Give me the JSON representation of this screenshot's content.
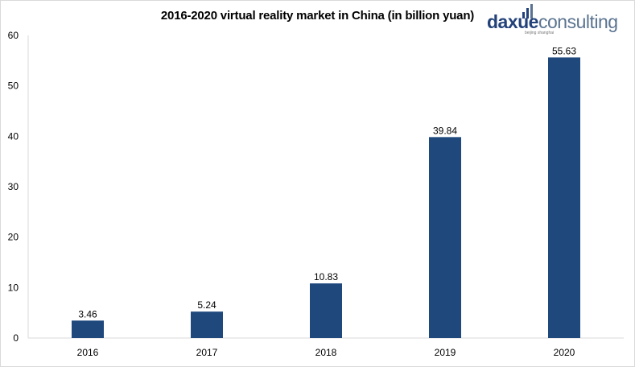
{
  "chart_data": {
    "type": "bar",
    "title": "2016-2020 virtual reality market in China (in billion yuan)",
    "categories": [
      "2016",
      "2017",
      "2018",
      "2019",
      "2020"
    ],
    "values": [
      3.46,
      5.24,
      10.83,
      39.84,
      55.63
    ],
    "data_labels": [
      "3.46",
      "5.24",
      "10.83",
      "39.84",
      "55.63"
    ],
    "ylim": [
      0,
      60
    ],
    "yticks": [
      "0",
      "10",
      "20",
      "30",
      "40",
      "50",
      "60"
    ],
    "xlabel": "",
    "ylabel": "",
    "grid": false,
    "bar_color": "#1f497d"
  },
  "logo": {
    "brand_part1": "daxue",
    "brand_part2": "consulting",
    "tagline": "beijing shanghai",
    "color1": "#23427a",
    "color2": "#5a7390"
  }
}
